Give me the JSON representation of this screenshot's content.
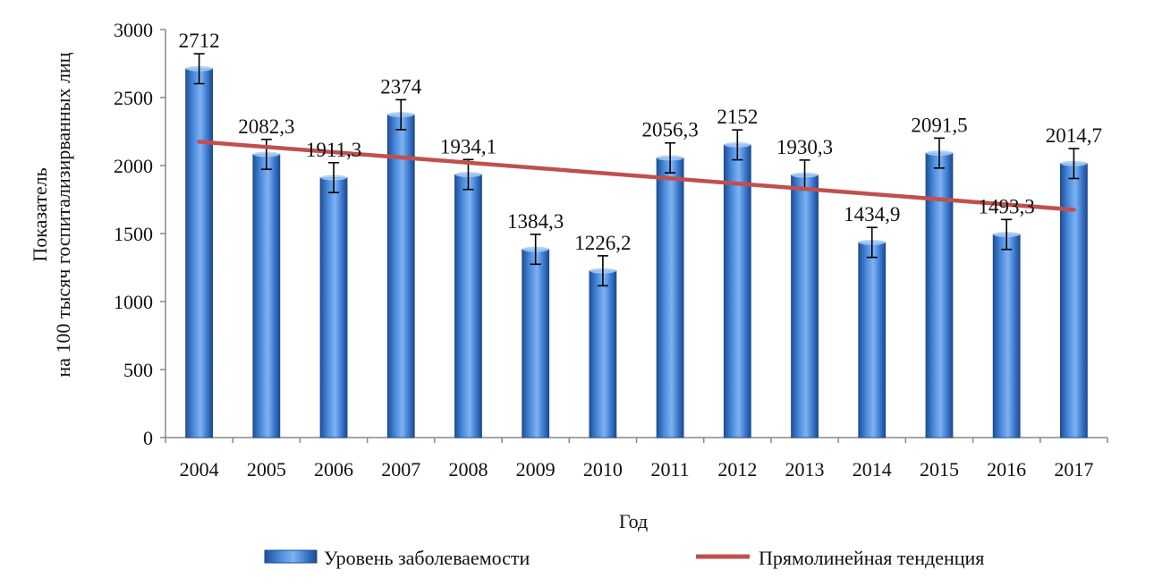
{
  "chart_data": {
    "type": "bar",
    "categories": [
      "2004",
      "2005",
      "2006",
      "2007",
      "2008",
      "2009",
      "2010",
      "2011",
      "2012",
      "2013",
      "2014",
      "2015",
      "2016",
      "2017"
    ],
    "series": [
      {
        "name": "Уровень заболеваемости",
        "values": [
          2712,
          2082.3,
          1911.3,
          2374,
          1934.1,
          1384.3,
          1226.2,
          2056.3,
          2152,
          1930.3,
          1434.9,
          2091.5,
          1493.3,
          2014.7
        ],
        "labels": [
          "2712",
          "2082,3",
          "1911,3",
          "2374",
          "1934,1",
          "1384,3",
          "1226,2",
          "2056,3",
          "2152",
          "1930,3",
          "1434,9",
          "2091,5",
          "1493,3",
          "2014,7"
        ],
        "error": [
          110,
          110,
          110,
          110,
          110,
          110,
          110,
          110,
          110,
          110,
          110,
          110,
          110,
          110
        ],
        "color": "#2f6fc9"
      }
    ],
    "trend": {
      "name": "Прямолинейная тенденция",
      "start": 2175,
      "end": 1675,
      "color": "#c0504d"
    },
    "ylim": [
      0,
      3000
    ],
    "yticks": [
      "0",
      "500",
      "1000",
      "1500",
      "2000",
      "2500",
      "3000"
    ],
    "ylabel": [
      "Показатель",
      "на 100 тысяч госпитализирванных лиц"
    ],
    "xlabel": "Год",
    "legend_position": "bottom",
    "grid": false
  }
}
